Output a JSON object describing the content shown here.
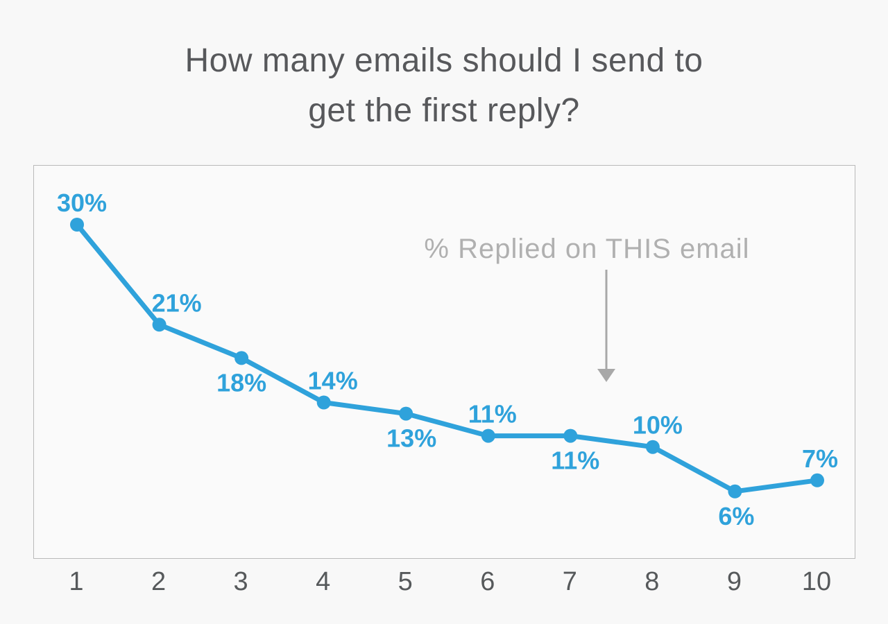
{
  "title_lines": [
    "How many emails should I send to",
    "get the first reply?"
  ],
  "colors": {
    "line": "#2fa2db",
    "point_label": "#2fa2db",
    "title_text": "#57585b",
    "axis_text": "#56595b",
    "annotation_text": "#b0b0b0",
    "arrow": "#a8a8a8",
    "panel_border": "#b9b9b9",
    "panel_bg": "#fafafa",
    "page_bg": "#f8f8f8"
  },
  "chart_data": {
    "type": "line",
    "title": "How many emails should I send to get the first reply?",
    "x": [
      1,
      2,
      3,
      4,
      5,
      6,
      7,
      8,
      9,
      10
    ],
    "values": [
      30,
      21,
      18,
      14,
      13,
      11,
      11,
      10,
      6,
      7
    ],
    "point_labels": [
      "30%",
      "21%",
      "18%",
      "14%",
      "13%",
      "11%",
      "11%",
      "10%",
      "6%",
      "7%"
    ],
    "label_positions": [
      "above",
      "above",
      "below",
      "above",
      "below",
      "above",
      "below",
      "above",
      "below",
      "above"
    ],
    "label_dx": [
      7,
      25,
      0,
      13,
      8,
      6,
      7,
      7,
      2,
      4
    ],
    "xlabel": "",
    "ylabel": "",
    "ylim": [
      0,
      35.3
    ],
    "grid": false,
    "legend": "none",
    "annotation": {
      "text": "% Replied on THIS email",
      "x": 797,
      "y": 133,
      "arrow_x": 825,
      "arrow_y1": 150,
      "arrow_y2": 293,
      "arrow_tip_y": 312,
      "arrow_half_width": 13
    }
  }
}
